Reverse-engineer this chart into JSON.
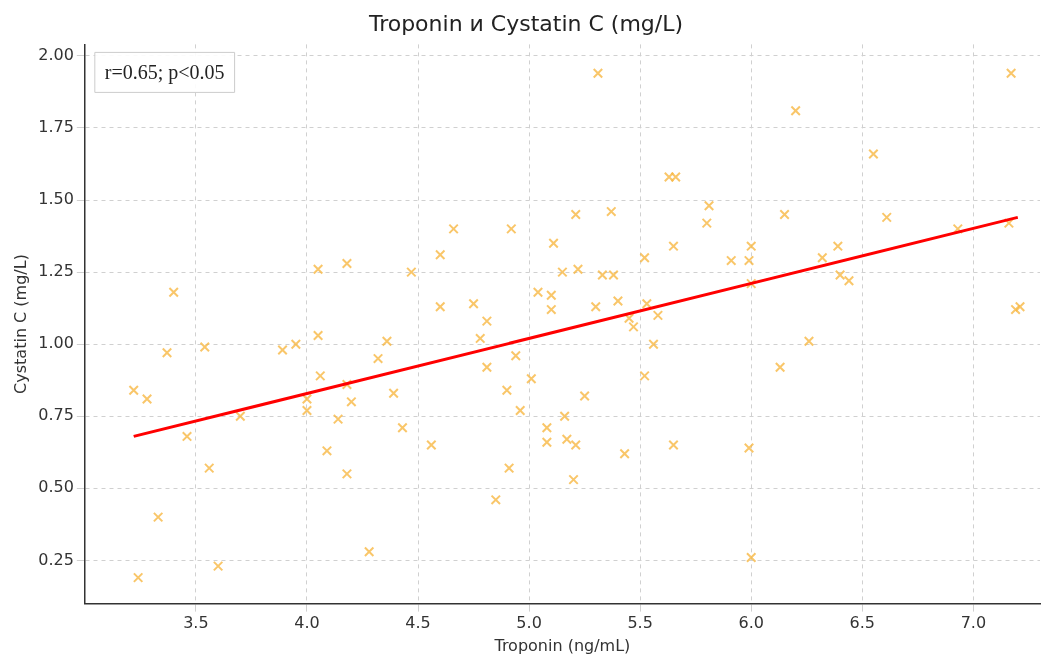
{
  "chart_data": {
    "type": "scatter",
    "title": "Troponin и Cystatin C (mg/L)",
    "xlabel": "Troponin (ng/mL)",
    "ylabel": "Cystatin C (mg/L)",
    "xlim": [
      3.0,
      7.3
    ],
    "ylim": [
      0.1,
      2.04
    ],
    "xticks": [
      {
        "value": 3.5,
        "label": "3.5"
      },
      {
        "value": 4.0,
        "label": "4.0"
      },
      {
        "value": 4.5,
        "label": "4.5"
      },
      {
        "value": 5.0,
        "label": "5.0"
      },
      {
        "value": 5.5,
        "label": "5.5"
      },
      {
        "value": 6.0,
        "label": "6.0"
      },
      {
        "value": 6.5,
        "label": "6.5"
      },
      {
        "value": 7.0,
        "label": "7.0"
      }
    ],
    "yticks": [
      {
        "value": 0.25,
        "label": "0.25"
      },
      {
        "value": 0.5,
        "label": "0.50"
      },
      {
        "value": 0.75,
        "label": "0.75"
      },
      {
        "value": 1.0,
        "label": "1.00"
      },
      {
        "value": 1.25,
        "label": "1.25"
      },
      {
        "value": 1.5,
        "label": "1.50"
      },
      {
        "value": 1.75,
        "label": "1.75"
      },
      {
        "value": 2.0,
        "label": "2.00"
      }
    ],
    "grid": true,
    "legend": false,
    "annotations": [
      "r=0.65; p<0.05"
    ],
    "series": [
      {
        "type": "scatter",
        "marker": "cross",
        "color": "#f7b844",
        "x": [
          3.22,
          3.28,
          3.4,
          3.37,
          3.54,
          3.46,
          3.56,
          3.33,
          3.24,
          3.6,
          3.7,
          3.89,
          3.95,
          4.0,
          4.0,
          4.05,
          4.05,
          4.06,
          4.09,
          4.14,
          4.18,
          4.18,
          4.18,
          4.2,
          4.32,
          4.36,
          4.39,
          4.43,
          4.47,
          4.28,
          4.6,
          4.6,
          4.56,
          4.66,
          4.75,
          4.78,
          4.81,
          4.81,
          4.85,
          4.9,
          4.92,
          4.91,
          4.94,
          4.96,
          5.01,
          5.04,
          5.1,
          5.1,
          5.11,
          5.08,
          5.08,
          5.16,
          5.17,
          5.15,
          5.22,
          5.21,
          5.21,
          5.2,
          5.25,
          5.31,
          5.3,
          5.33,
          5.37,
          5.38,
          5.4,
          5.43,
          5.45,
          5.47,
          5.52,
          5.53,
          5.52,
          5.56,
          5.58,
          5.63,
          5.66,
          5.65,
          5.65,
          5.8,
          5.81,
          5.91,
          5.99,
          6.0,
          6.0,
          5.99,
          6.0,
          6.15,
          6.13,
          6.2,
          6.26,
          6.32,
          6.39,
          6.4,
          6.44,
          6.55,
          6.61,
          6.93,
          7.17,
          7.16,
          7.19,
          7.21
        ],
        "values": [
          0.84,
          0.81,
          1.18,
          0.97,
          0.99,
          0.68,
          0.57,
          0.4,
          0.19,
          0.23,
          0.75,
          0.98,
          1.0,
          0.81,
          0.77,
          1.26,
          1.03,
          0.89,
          0.63,
          0.74,
          1.28,
          0.86,
          0.55,
          0.8,
          0.95,
          1.01,
          0.83,
          0.71,
          1.25,
          0.28,
          1.31,
          1.13,
          0.65,
          1.4,
          1.14,
          1.02,
          1.08,
          0.92,
          0.46,
          0.84,
          1.4,
          0.57,
          0.96,
          0.77,
          0.88,
          1.18,
          1.17,
          1.12,
          1.35,
          0.71,
          0.66,
          0.75,
          0.67,
          1.25,
          1.26,
          1.45,
          0.65,
          0.53,
          0.82,
          1.94,
          1.13,
          1.24,
          1.46,
          1.24,
          1.15,
          0.62,
          1.09,
          1.06,
          1.3,
          1.14,
          0.89,
          1.0,
          1.1,
          1.58,
          1.58,
          1.34,
          0.65,
          1.42,
          1.48,
          1.29,
          1.29,
          1.34,
          1.21,
          0.64,
          0.26,
          1.45,
          0.92,
          1.81,
          1.01,
          1.3,
          1.34,
          1.24,
          1.22,
          1.66,
          1.44,
          1.4,
          1.94,
          1.42,
          1.12,
          1.13
        ]
      },
      {
        "type": "line",
        "marker": "none",
        "line_style": "solid",
        "color": "#ff0000",
        "x": [
          3.22,
          7.2
        ],
        "values": [
          0.68,
          1.44
        ]
      }
    ]
  }
}
